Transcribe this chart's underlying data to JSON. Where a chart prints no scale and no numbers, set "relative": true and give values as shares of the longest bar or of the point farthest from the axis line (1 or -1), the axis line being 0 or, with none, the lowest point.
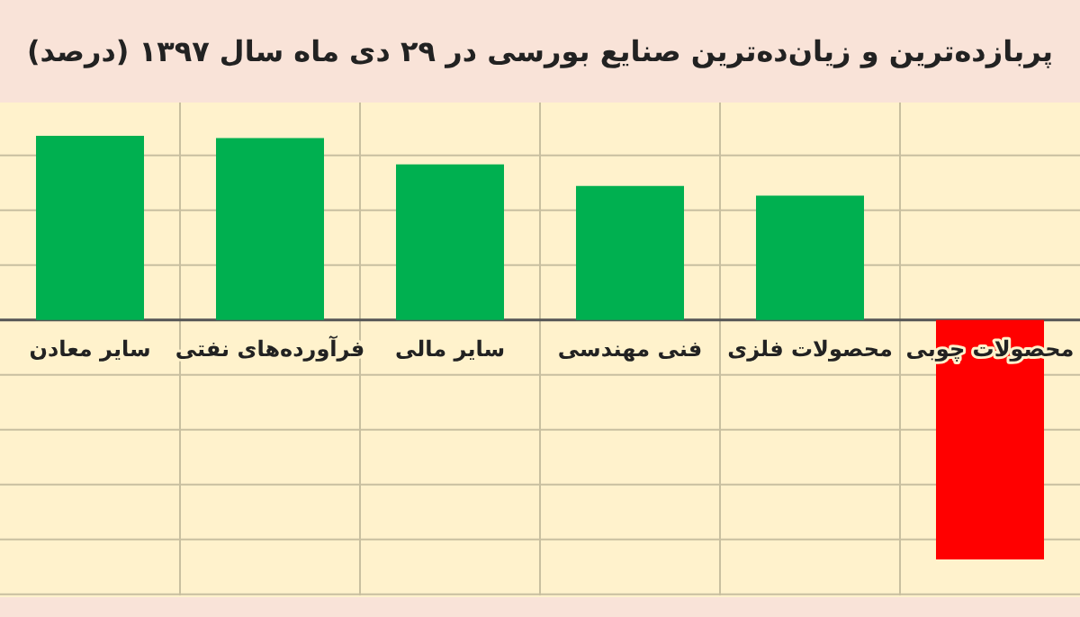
{
  "chart_data": {
    "type": "bar",
    "title": "پربازده‌ترین و زیان‌ده‌ترین صنایع بورسی در ۲۹ دی ماه سال ۱۳۹۷ (درصد)",
    "categories": [
      "سایر معادن",
      "فرآورده‌های نفتی",
      "سایر مالی",
      "فنی مهندسی",
      "محصولات فلزی",
      "محصولات چوبی"
    ],
    "values": [
      0.77,
      0.76,
      0.65,
      0.56,
      0.52,
      -1
    ],
    "colors": [
      "#00b050",
      "#00b050",
      "#00b050",
      "#00b050",
      "#00b050",
      "#ff0000"
    ],
    "relative": true,
    "grid": true
  }
}
